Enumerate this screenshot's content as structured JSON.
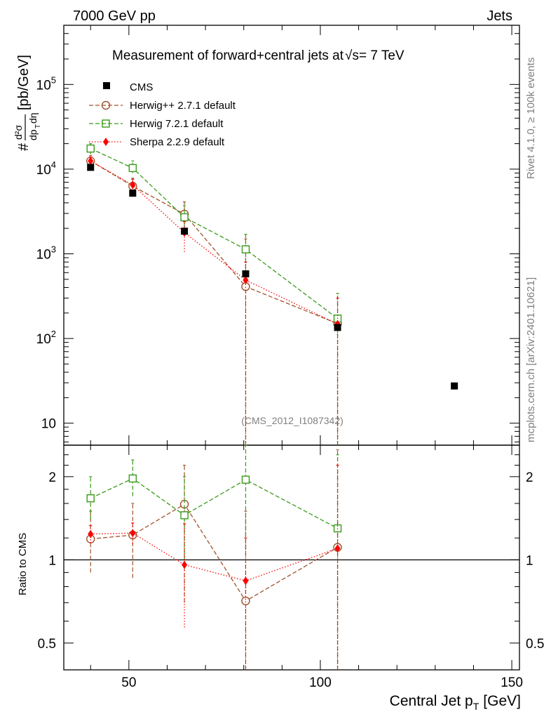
{
  "header": {
    "left": "7000 GeV pp",
    "right": "Jets"
  },
  "title_text": "Measurement of forward+central jets at",
  "title_sqrt": "√s",
  "title_tail": "= 7 TeV",
  "side_text_top": "Rivet 4.1.0, ≥ 100k events",
  "side_text_bottom": "mcplots.cern.ch [arXiv:2401.10621]",
  "analysis_id": "(CMS_2012_I1087342)",
  "ylabel_main": "#d²σ / dp_T dη [pb/GeV]",
  "ylabel_ratio": "Ratio to CMS",
  "xlabel_main": "Central Jet p",
  "xlabel_sub": "T",
  "xlabel_unit": "[GeV]",
  "legend": {
    "cms": "CMS",
    "herwigpp": "Herwig++ 2.7.1 default",
    "herwig7": "Herwig 7.2.1 default",
    "sherpa": "Sherpa 2.2.9 default"
  },
  "colors": {
    "cms": "#000000",
    "herwigpp": "#a0522d",
    "herwig7": "#3a9a1a",
    "sherpa": "#ff0000"
  },
  "chart_data": [
    {
      "type": "scatter",
      "panel": "main",
      "title": "Measurement of forward+central jets at √s = 7 TeV",
      "xlabel": "Central Jet p_T [GeV]",
      "ylabel": "#d²σ/dp_T dη [pb/GeV]",
      "yscale": "log",
      "xlim": [
        33,
        152
      ],
      "ylim": [
        5.5,
        500000
      ],
      "x": [
        40,
        51,
        64.5,
        80.5,
        104.5,
        135
      ],
      "series": [
        {
          "name": "CMS",
          "values": [
            10500,
            5200,
            1850,
            580,
            135,
            27.5
          ]
        },
        {
          "name": "Herwig++ 2.7.1 default",
          "values": [
            12500,
            6300,
            2950,
            410,
            150,
            null
          ],
          "err_lo": [
            10500,
            5000,
            1900,
            0.1,
            0.1,
            null
          ],
          "err_hi": [
            14500,
            7800,
            4100,
            1500,
            340,
            null
          ]
        },
        {
          "name": "Herwig 7.2.1 default",
          "values": [
            17500,
            10300,
            2700,
            1130,
            172,
            null
          ],
          "err_lo": [
            15000,
            9000,
            1800,
            650,
            0.1,
            null
          ],
          "err_hi": [
            20000,
            12500,
            3700,
            1700,
            340,
            null
          ]
        },
        {
          "name": "Sherpa 2.2.9 default",
          "values": [
            12500,
            6500,
            1780,
            490,
            148,
            null
          ],
          "err_lo": [
            11000,
            5600,
            1050,
            0.1,
            0.1,
            null
          ],
          "err_hi": [
            14000,
            7600,
            2400,
            800,
            300,
            null
          ]
        }
      ]
    },
    {
      "type": "scatter",
      "panel": "ratio",
      "ylabel": "Ratio to CMS",
      "xlabel": "Central Jet p_T [GeV]",
      "yscale": "log",
      "xlim": [
        33,
        152
      ],
      "ylim": [
        0.4,
        2.6
      ],
      "reference_line": 1,
      "yticks": [
        0.5,
        1,
        2
      ],
      "xticks": [
        50,
        100,
        150
      ],
      "x": [
        40,
        51,
        64.5,
        80.5,
        104.5
      ],
      "series": [
        {
          "name": "Herwig++ 2.7.1 default",
          "values": [
            1.19,
            1.23,
            1.59,
            0.71,
            1.11
          ],
          "err_lo": [
            0.9,
            0.86,
            0.7,
            0.3,
            0.3
          ],
          "err_hi": [
            1.5,
            1.6,
            2.2,
            1.5,
            2.5
          ]
        },
        {
          "name": "Herwig 7.2.1 default",
          "values": [
            1.67,
            1.97,
            1.45,
            1.95,
            1.3
          ],
          "err_lo": [
            1.4,
            1.7,
            1.0,
            1.1,
            0.3
          ],
          "err_hi": [
            2.0,
            2.3,
            2.0,
            2.6,
            2.4
          ]
        },
        {
          "name": "Sherpa 2.2.9 default",
          "values": [
            1.24,
            1.25,
            0.96,
            0.84,
            1.1
          ],
          "err_lo": [
            1.15,
            1.14,
            0.57,
            0.3,
            0.3
          ],
          "err_hi": [
            1.33,
            1.36,
            1.35,
            1.2,
            2.2
          ]
        }
      ]
    }
  ]
}
